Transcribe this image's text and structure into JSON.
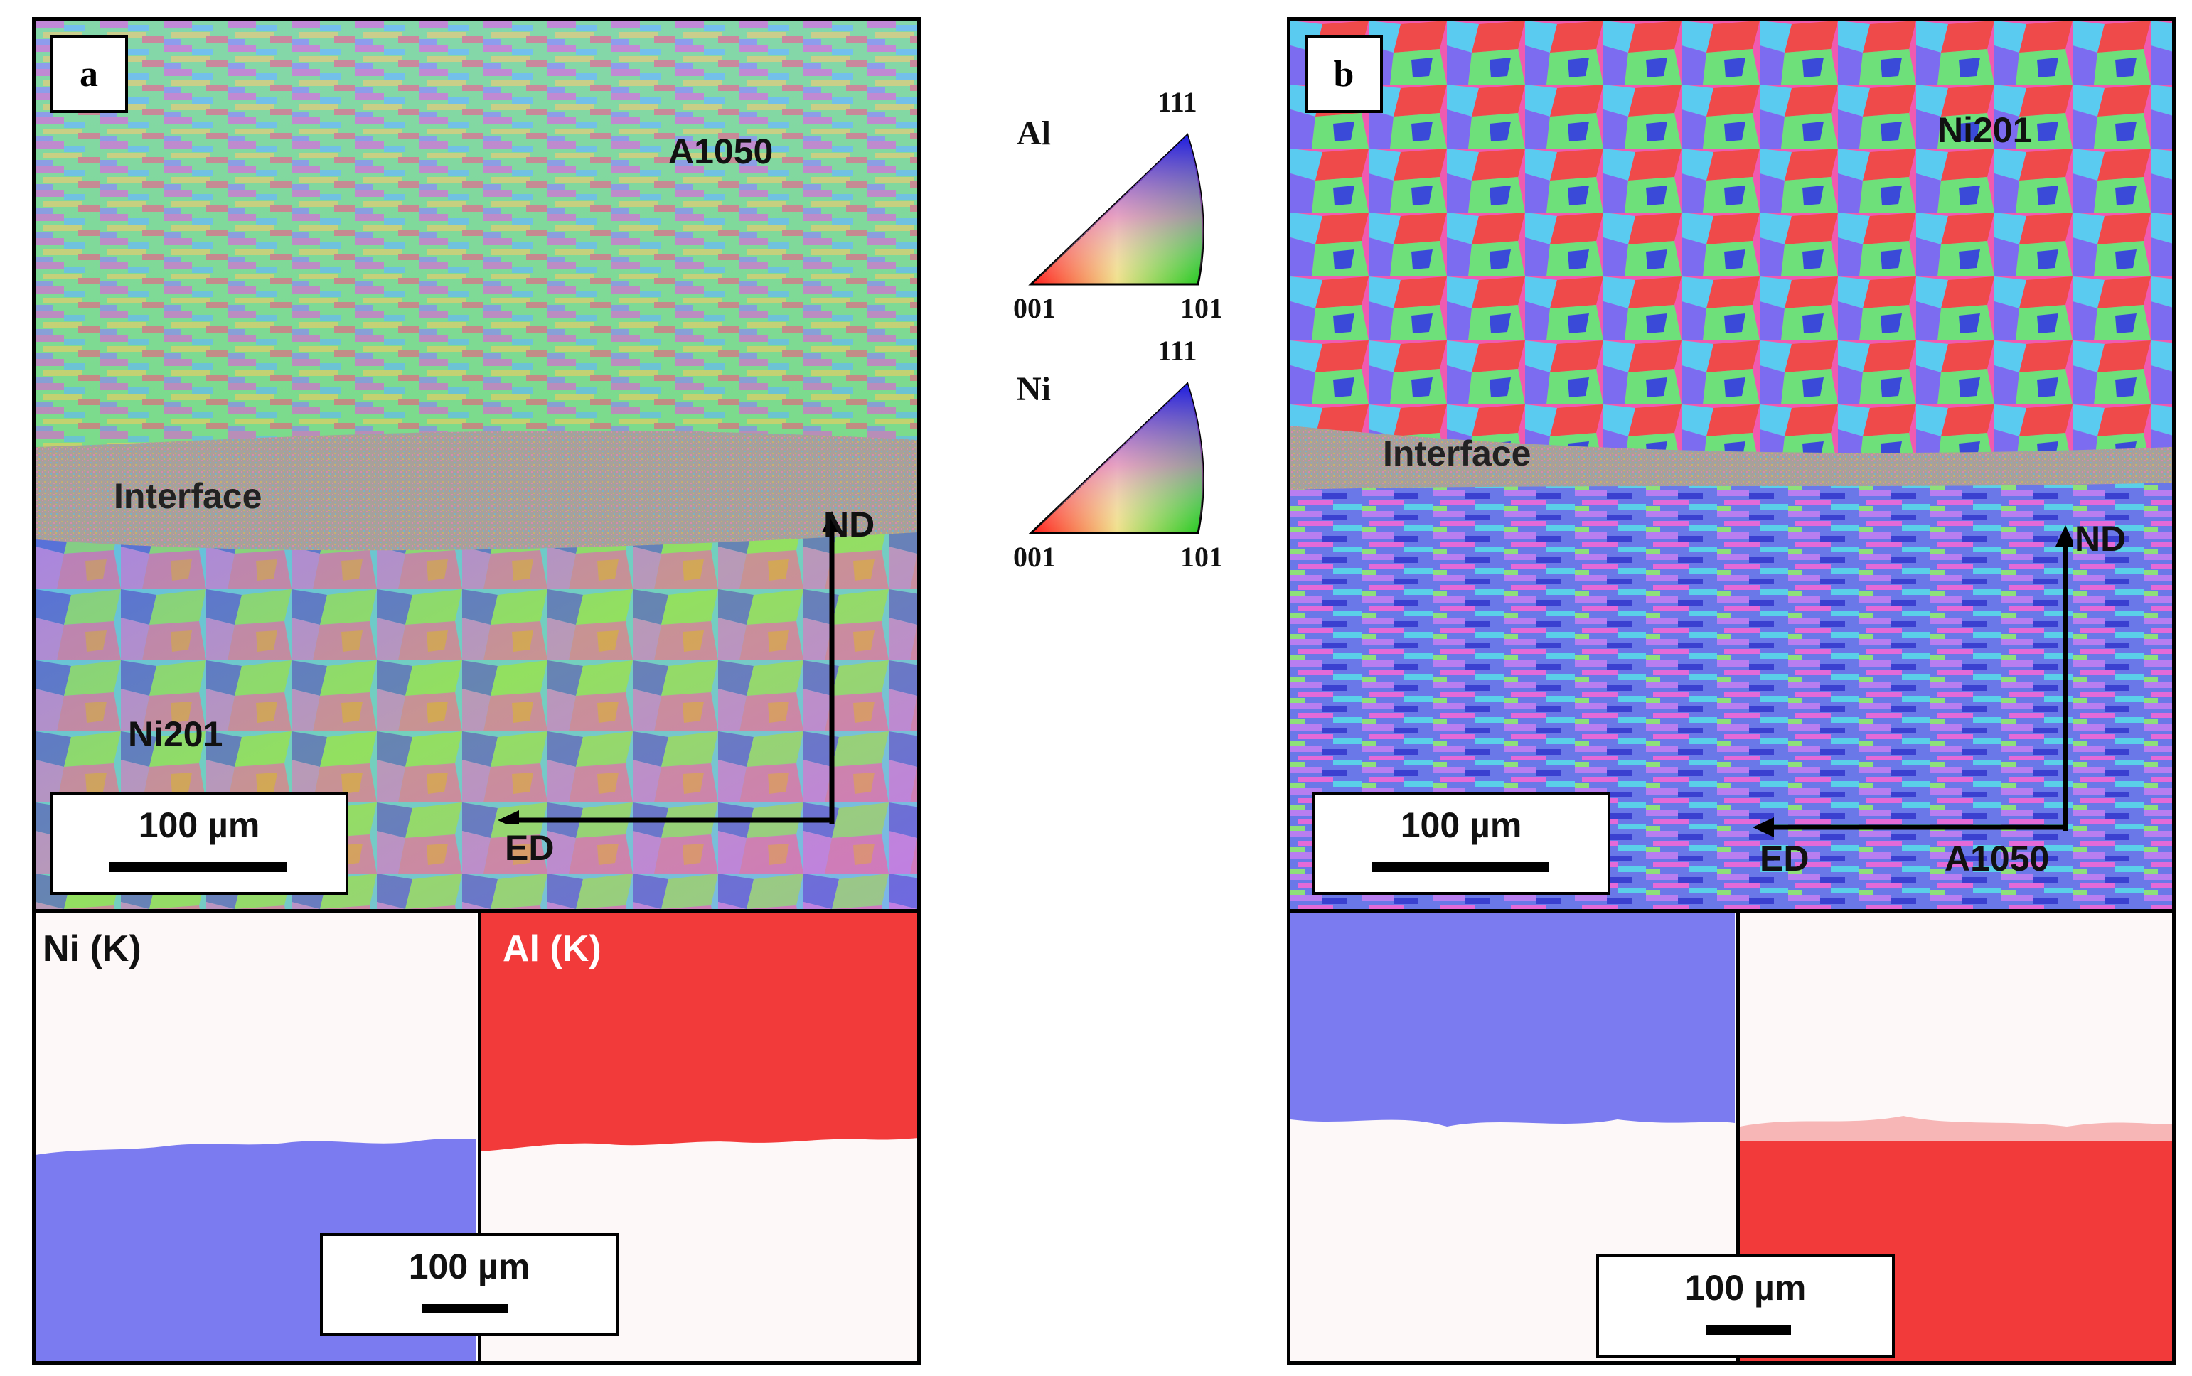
{
  "panel_a": {
    "letter": "a",
    "top_material": "A1050",
    "bottom_material": "Ni201",
    "interface_label": "Interface",
    "axis_nd": "ND",
    "axis_ed": "ED",
    "scale_label": "100 µm",
    "eds_left_title": "Ni (K)",
    "eds_right_title": "Al (K)",
    "eds_scale_label": "100 µm"
  },
  "panel_b": {
    "letter": "b",
    "top_material": "Ni201",
    "bottom_material": "A1050",
    "interface_label": "Interface",
    "axis_nd": "ND",
    "axis_ed": "ED",
    "scale_label": "100 µm",
    "eds_scale_label": "100 µm"
  },
  "ipf_legend": [
    {
      "element": "Al",
      "corner_top": "111",
      "corner_left": "001",
      "corner_right": "101"
    },
    {
      "element": "Ni",
      "corner_top": "111",
      "corner_left": "001",
      "corner_right": "101"
    }
  ],
  "colors": {
    "ni_map": "#7b7bf0",
    "al_map": "#f23a3a",
    "eds_background": "#fdf8f8"
  }
}
